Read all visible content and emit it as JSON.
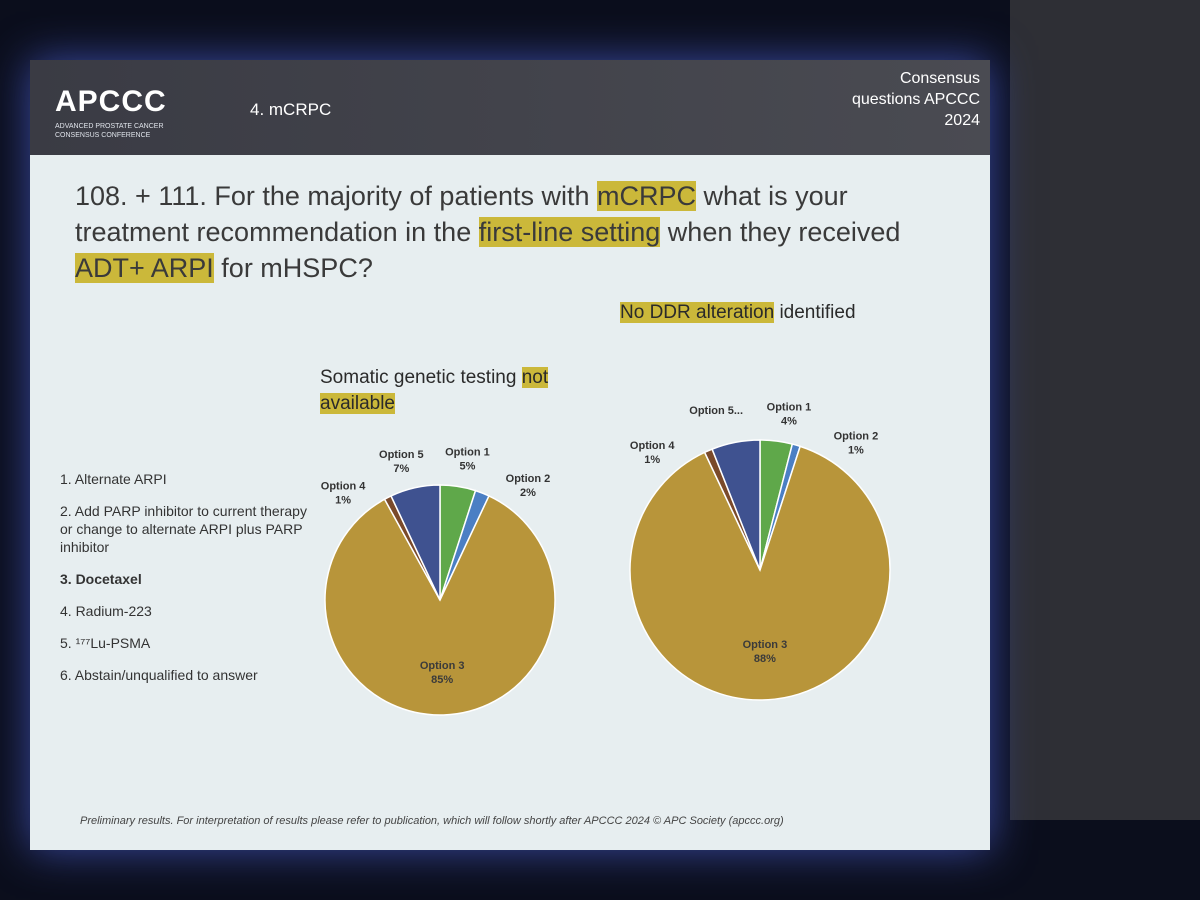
{
  "header": {
    "logo": "APCCC",
    "logo_subtitle": "ADVANCED PROSTATE CANCER CONSENSUS CONFERENCE",
    "section": "4. mCRPC",
    "tag": "Consensus questions APCCC 2024"
  },
  "question": [
    {
      "text": "108. + 111. For the majority of patients with ",
      "highlight": false
    },
    {
      "text": "mCRPC",
      "highlight": true
    },
    {
      "text": " what is your treatment recommendation in the ",
      "highlight": false
    },
    {
      "text": "first-line setting",
      "highlight": true
    },
    {
      "text": " when they received ",
      "highlight": false
    },
    {
      "text": "ADT+ ARPI",
      "highlight": true
    },
    {
      "text": " for mHSPC?",
      "highlight": false
    }
  ],
  "options": [
    {
      "text": "1.  Alternate ARPI",
      "bold": false
    },
    {
      "text": "2.  Add PARP inhibitor to current therapy or change to alternate ARPI plus PARP inhibitor",
      "bold": false
    },
    {
      "text": "3.  Docetaxel",
      "bold": true
    },
    {
      "text": "4.  Radium-223",
      "bold": false
    },
    {
      "text": "5.  ¹⁷⁷Lu-PSMA",
      "bold": false
    },
    {
      "text": "6.  Abstain/unqualified to answer",
      "bold": false
    }
  ],
  "footer": "Preliminary results. For interpretation of results please refer to publication, which will follow shortly after APCCC 2024 © APC Society (apccc.org)",
  "chart_data": [
    {
      "type": "pie",
      "title": [
        {
          "text": "Somatic genetic testing ",
          "highlight": false
        },
        {
          "text": "not available",
          "highlight": true
        }
      ],
      "categories": [
        "Option 1",
        "Option 2",
        "Option 3",
        "Option 4",
        "Option 5"
      ],
      "values": [
        5,
        2,
        85,
        1,
        7
      ],
      "value_labels": [
        "5%",
        "2%",
        "85%",
        "1%",
        "7%"
      ],
      "colors": [
        "#5fa84a",
        "#4b7fc4",
        "#b8953a",
        "#7a4a2a",
        "#3f5290"
      ]
    },
    {
      "type": "pie",
      "title": [
        {
          "text": "No DDR alteration",
          "highlight": true
        },
        {
          "text": " identified",
          "highlight": false
        }
      ],
      "categories": [
        "Option 1",
        "Option 2",
        "Option 3",
        "Option 4",
        "Option 5..."
      ],
      "values": [
        4,
        1,
        88,
        1,
        6
      ],
      "value_labels": [
        "4%",
        "1%",
        "88%",
        "1%",
        null
      ],
      "colors": [
        "#5fa84a",
        "#4b7fc4",
        "#b8953a",
        "#7a4a2a",
        "#3f5290"
      ]
    }
  ]
}
